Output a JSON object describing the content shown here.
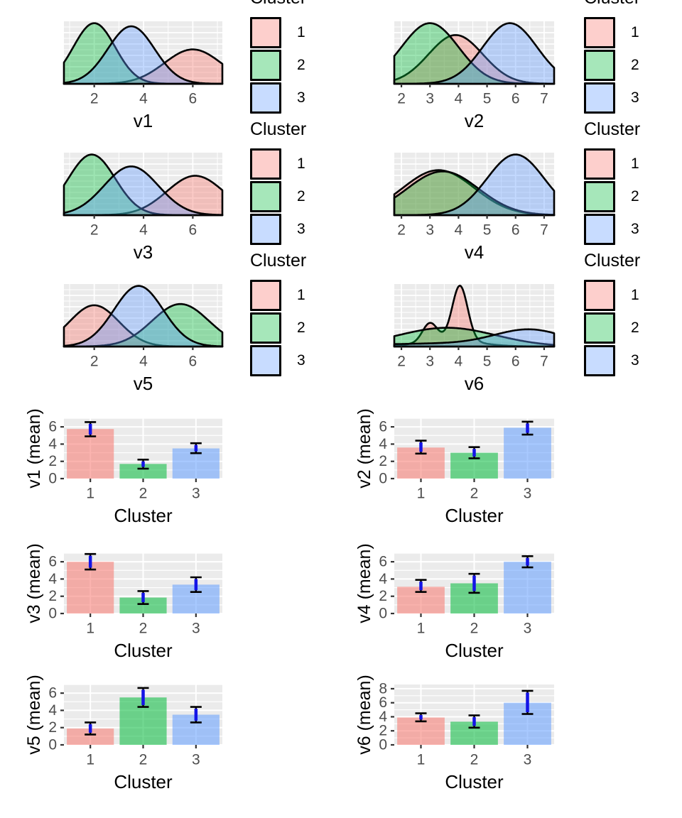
{
  "palette": {
    "cluster1": "#F8766D",
    "cluster2": "#00BA38",
    "cluster3": "#619CFF",
    "errorbar_blue": "#1414E6",
    "panel_bg": "#EBEBEB",
    "gridline": "#FFFFFF",
    "tick_mark": "#333333",
    "axis_text": "#4D4D4D",
    "title_text": "#000000"
  },
  "legend": {
    "title": "Cluster",
    "entries": [
      {
        "label": "1",
        "cluster": "1"
      },
      {
        "label": "2",
        "cluster": "2"
      },
      {
        "label": "3",
        "cluster": "3"
      }
    ]
  },
  "chart_data": [
    {
      "id": "v1",
      "type": "density",
      "xlabel": "v1",
      "x_ticks": [
        2,
        4,
        6
      ],
      "x_domain": [
        0.77,
        7.2
      ],
      "curves": [
        {
          "cluster": "1",
          "components": [
            {
              "mean": 6.0,
              "sd": 1.15,
              "peak": 0.55
            }
          ]
        },
        {
          "cluster": "2",
          "components": [
            {
              "mean": 2.0,
              "sd": 0.85,
              "peak": 0.97
            }
          ]
        },
        {
          "cluster": "3",
          "components": [
            {
              "mean": 3.5,
              "sd": 0.95,
              "peak": 0.92
            }
          ]
        }
      ]
    },
    {
      "id": "v2",
      "type": "density",
      "xlabel": "v2",
      "x_ticks": [
        2,
        3,
        4,
        5,
        6,
        7
      ],
      "x_domain": [
        1.75,
        7.35
      ],
      "curves": [
        {
          "cluster": "1",
          "components": [
            {
              "mean": 3.9,
              "sd": 0.95,
              "peak": 0.78
            }
          ]
        },
        {
          "cluster": "2",
          "components": [
            {
              "mean": 3.0,
              "sd": 1.0,
              "peak": 0.97
            }
          ]
        },
        {
          "cluster": "3",
          "components": [
            {
              "mean": 5.8,
              "sd": 0.95,
              "peak": 0.97
            }
          ]
        }
      ]
    },
    {
      "id": "v3",
      "type": "density",
      "xlabel": "v3",
      "x_ticks": [
        2,
        4,
        6
      ],
      "x_domain": [
        0.77,
        7.2
      ],
      "curves": [
        {
          "cluster": "1",
          "components": [
            {
              "mean": 6.1,
              "sd": 1.15,
              "peak": 0.63
            }
          ]
        },
        {
          "cluster": "2",
          "components": [
            {
              "mean": 1.9,
              "sd": 0.95,
              "peak": 0.97
            }
          ]
        },
        {
          "cluster": "3",
          "components": [
            {
              "mean": 3.5,
              "sd": 1.1,
              "peak": 0.78
            }
          ]
        }
      ]
    },
    {
      "id": "v4",
      "type": "density",
      "xlabel": "v4",
      "x_ticks": [
        2,
        3,
        4,
        5,
        6,
        7
      ],
      "x_domain": [
        1.75,
        7.35
      ],
      "curves": [
        {
          "cluster": "1",
          "components": [
            {
              "mean": 3.3,
              "sd": 1.25,
              "peak": 0.72
            }
          ]
        },
        {
          "cluster": "2",
          "components": [
            {
              "mean": 3.45,
              "sd": 1.25,
              "peak": 0.7
            }
          ]
        },
        {
          "cluster": "3",
          "components": [
            {
              "mean": 6.0,
              "sd": 1.0,
              "peak": 0.97
            }
          ]
        }
      ]
    },
    {
      "id": "v5",
      "type": "density",
      "xlabel": "v5",
      "x_ticks": [
        2,
        4,
        6
      ],
      "x_domain": [
        0.77,
        7.2
      ],
      "curves": [
        {
          "cluster": "1",
          "components": [
            {
              "mean": 2.0,
              "sd": 1.0,
              "peak": 0.66
            }
          ]
        },
        {
          "cluster": "2",
          "components": [
            {
              "mean": 5.5,
              "sd": 1.15,
              "peak": 0.68
            }
          ]
        },
        {
          "cluster": "3",
          "components": [
            {
              "mean": 3.8,
              "sd": 1.0,
              "peak": 0.97
            }
          ]
        }
      ]
    },
    {
      "id": "v6",
      "type": "density",
      "xlabel": "v6",
      "x_ticks": [
        2,
        3,
        4,
        5,
        6,
        7
      ],
      "x_domain": [
        1.75,
        7.35
      ],
      "curves": [
        {
          "cluster": "1",
          "components": [
            {
              "mean": 3.0,
              "sd": 0.26,
              "peak": 0.3
            },
            {
              "mean": 4.05,
              "sd": 0.27,
              "peak": 0.88
            },
            {
              "mean": 3.7,
              "sd": 1.0,
              "peak": 0.1
            }
          ]
        },
        {
          "cluster": "2",
          "components": [
            {
              "mean": 3.6,
              "sd": 1.7,
              "peak": 0.3
            }
          ]
        },
        {
          "cluster": "3",
          "components": [
            {
              "mean": 6.5,
              "sd": 1.2,
              "peak": 0.24
            },
            {
              "mean": 4.0,
              "sd": 3.0,
              "peak": 0.05
            }
          ]
        }
      ]
    },
    {
      "id": "v1_mean",
      "type": "bar",
      "ylabel": "v1 (mean)",
      "xlabel": "Cluster",
      "categories": [
        "1",
        "2",
        "3"
      ],
      "y_ticks": [
        0,
        2,
        4,
        6
      ],
      "ymax": 7,
      "bars": [
        {
          "cluster": "1",
          "mean": 5.75,
          "lo": 4.9,
          "hi": 6.55
        },
        {
          "cluster": "2",
          "mean": 1.7,
          "lo": 1.15,
          "hi": 2.2
        },
        {
          "cluster": "3",
          "mean": 3.5,
          "lo": 2.95,
          "hi": 4.1
        }
      ]
    },
    {
      "id": "v2_mean",
      "type": "bar",
      "ylabel": "v2 (mean)",
      "xlabel": "Cluster",
      "categories": [
        "1",
        "2",
        "3"
      ],
      "y_ticks": [
        0,
        2,
        4,
        6
      ],
      "ymax": 7,
      "bars": [
        {
          "cluster": "1",
          "mean": 3.6,
          "lo": 2.9,
          "hi": 4.4
        },
        {
          "cluster": "2",
          "mean": 3.0,
          "lo": 2.35,
          "hi": 3.65
        },
        {
          "cluster": "3",
          "mean": 5.9,
          "lo": 5.1,
          "hi": 6.6
        }
      ]
    },
    {
      "id": "v3_mean",
      "type": "bar",
      "ylabel": "v3 (mean)",
      "xlabel": "Cluster",
      "categories": [
        "1",
        "2",
        "3"
      ],
      "y_ticks": [
        0,
        2,
        4,
        6
      ],
      "ymax": 7,
      "bars": [
        {
          "cluster": "1",
          "mean": 6.0,
          "lo": 5.1,
          "hi": 6.9
        },
        {
          "cluster": "2",
          "mean": 1.85,
          "lo": 1.1,
          "hi": 2.6
        },
        {
          "cluster": "3",
          "mean": 3.35,
          "lo": 2.5,
          "hi": 4.2
        }
      ]
    },
    {
      "id": "v4_mean",
      "type": "bar",
      "ylabel": "v4 (mean)",
      "xlabel": "Cluster",
      "categories": [
        "1",
        "2",
        "3"
      ],
      "y_ticks": [
        0,
        2,
        4,
        6
      ],
      "ymax": 7,
      "bars": [
        {
          "cluster": "1",
          "mean": 3.1,
          "lo": 2.5,
          "hi": 3.9
        },
        {
          "cluster": "2",
          "mean": 3.5,
          "lo": 2.4,
          "hi": 4.6
        },
        {
          "cluster": "3",
          "mean": 6.0,
          "lo": 5.35,
          "hi": 6.65
        }
      ]
    },
    {
      "id": "v5_mean",
      "type": "bar",
      "ylabel": "v5 (mean)",
      "xlabel": "Cluster",
      "categories": [
        "1",
        "2",
        "3"
      ],
      "y_ticks": [
        0,
        2,
        4,
        6
      ],
      "ymax": 7,
      "bars": [
        {
          "cluster": "1",
          "mean": 1.9,
          "lo": 1.2,
          "hi": 2.6
        },
        {
          "cluster": "2",
          "mean": 5.5,
          "lo": 4.4,
          "hi": 6.6
        },
        {
          "cluster": "3",
          "mean": 3.5,
          "lo": 2.6,
          "hi": 4.4
        }
      ]
    },
    {
      "id": "v6_mean",
      "type": "bar",
      "ylabel": "v6 (mean)",
      "xlabel": "Cluster",
      "categories": [
        "1",
        "2",
        "3"
      ],
      "y_ticks": [
        0,
        2,
        4,
        6,
        8
      ],
      "ymax": 8.6,
      "bars": [
        {
          "cluster": "1",
          "mean": 3.9,
          "lo": 3.35,
          "hi": 4.5
        },
        {
          "cluster": "2",
          "mean": 3.3,
          "lo": 2.45,
          "hi": 4.2
        },
        {
          "cluster": "3",
          "mean": 6.0,
          "lo": 4.4,
          "hi": 7.7
        }
      ]
    }
  ]
}
